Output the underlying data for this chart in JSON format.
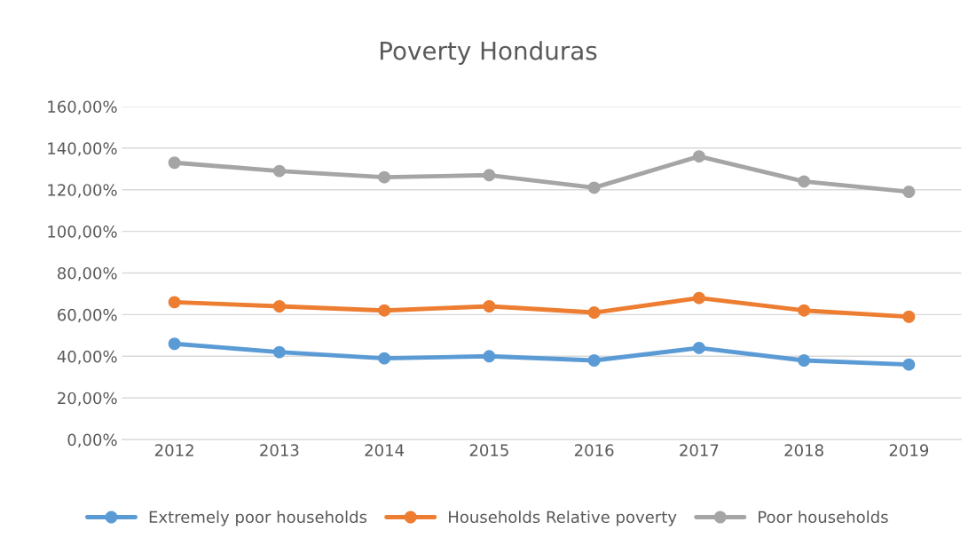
{
  "chart_data": {
    "type": "line",
    "title": "Poverty Honduras",
    "categories": [
      "2012",
      "2013",
      "2014",
      "2015",
      "2016",
      "2017",
      "2018",
      "2019"
    ],
    "series": [
      {
        "name": "Extremely poor households",
        "color": "#5b9bd5",
        "values": [
          46,
          42,
          39,
          40,
          38,
          44,
          38,
          36
        ]
      },
      {
        "name": "Households Relative poverty",
        "color": "#ed7d31",
        "values": [
          66,
          64,
          62,
          64,
          61,
          68,
          62,
          59
        ]
      },
      {
        "name": "Poor households",
        "color": "#a5a5a5",
        "values": [
          133,
          129,
          126,
          127,
          121,
          136,
          124,
          119
        ]
      }
    ],
    "ylim": [
      0,
      160
    ],
    "yticks": [
      {
        "value": 0,
        "label": "0,00%"
      },
      {
        "value": 20,
        "label": "20,00%"
      },
      {
        "value": 40,
        "label": "40,00%"
      },
      {
        "value": 60,
        "label": "60,00%"
      },
      {
        "value": 80,
        "label": "80,00%"
      },
      {
        "value": 100,
        "label": "100,00%"
      },
      {
        "value": 120,
        "label": "120,00%"
      },
      {
        "value": 140,
        "label": "140,00%"
      },
      {
        "value": 160,
        "label": "160,00%"
      }
    ],
    "grid": "y",
    "legend": "bottom",
    "marker": "circle",
    "line_style": "solid"
  }
}
